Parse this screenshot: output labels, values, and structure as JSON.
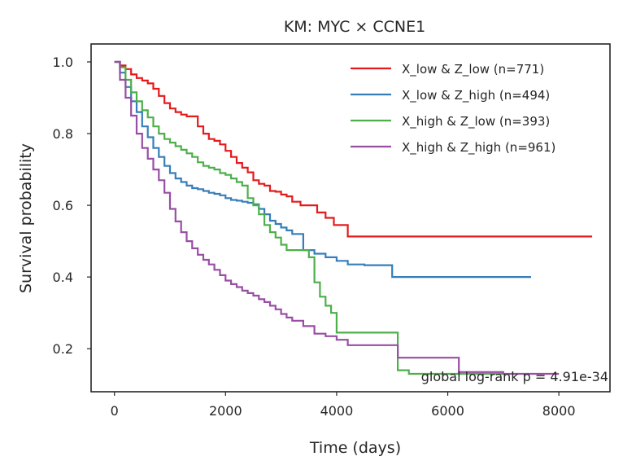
{
  "chart_data": {
    "type": "line",
    "title": "KM: MYC × CCNE1",
    "xlabel": "Time (days)",
    "ylabel": "Survival probability",
    "xlim": [
      -420,
      8920
    ],
    "ylim": [
      0.08,
      1.05
    ],
    "xticks": [
      0,
      2000,
      4000,
      6000,
      8000
    ],
    "xtick_labels": [
      "0",
      "2000",
      "4000",
      "6000",
      "8000"
    ],
    "yticks": [
      0.2,
      0.4,
      0.6,
      0.8,
      1.0
    ],
    "ytick_labels": [
      "0.2",
      "0.4",
      "0.6",
      "0.8",
      "1.0"
    ],
    "grid": false,
    "legend_position": "top-right",
    "annotation": "global log-rank p = 4.91e-34",
    "series": [
      {
        "name": "X_low & Z_low (n=771)",
        "color": "#e41a1c",
        "x": [
          0,
          100,
          200,
          300,
          400,
          500,
          600,
          700,
          800,
          900,
          1000,
          1100,
          1200,
          1300,
          1400,
          1500,
          1600,
          1700,
          1800,
          1900,
          2000,
          2100,
          2200,
          2300,
          2400,
          2500,
          2600,
          2700,
          2800,
          2900,
          3000,
          3100,
          3200,
          3350,
          3500,
          3650,
          3800,
          3950,
          4200,
          5000,
          6000,
          7000,
          8000,
          8600
        ],
        "y": [
          1.0,
          0.99,
          0.98,
          0.965,
          0.955,
          0.948,
          0.94,
          0.925,
          0.905,
          0.885,
          0.87,
          0.86,
          0.853,
          0.848,
          0.848,
          0.82,
          0.8,
          0.785,
          0.78,
          0.77,
          0.752,
          0.735,
          0.718,
          0.705,
          0.692,
          0.67,
          0.66,
          0.655,
          0.64,
          0.638,
          0.63,
          0.625,
          0.61,
          0.6,
          0.6,
          0.58,
          0.565,
          0.545,
          0.513,
          0.513,
          0.513,
          0.513,
          0.513,
          0.513
        ]
      },
      {
        "name": "X_low & Z_high (n=494)",
        "color": "#377eb8",
        "x": [
          0,
          100,
          200,
          300,
          400,
          500,
          600,
          700,
          800,
          900,
          1000,
          1100,
          1200,
          1300,
          1400,
          1500,
          1600,
          1700,
          1800,
          1900,
          2000,
          2100,
          2200,
          2300,
          2400,
          2500,
          2600,
          2700,
          2800,
          2900,
          3000,
          3100,
          3200,
          3400,
          3600,
          3800,
          4000,
          4200,
          4500,
          5000,
          5500,
          6000,
          7000,
          7500
        ],
        "y": [
          1.0,
          0.97,
          0.93,
          0.89,
          0.86,
          0.82,
          0.79,
          0.76,
          0.735,
          0.71,
          0.69,
          0.675,
          0.665,
          0.655,
          0.648,
          0.645,
          0.64,
          0.635,
          0.632,
          0.628,
          0.62,
          0.615,
          0.613,
          0.61,
          0.607,
          0.603,
          0.59,
          0.575,
          0.557,
          0.548,
          0.538,
          0.53,
          0.52,
          0.475,
          0.465,
          0.455,
          0.445,
          0.435,
          0.433,
          0.4,
          0.4,
          0.4,
          0.4,
          0.4
        ]
      },
      {
        "name": "X_high & Z_low (n=393)",
        "color": "#4daf4a",
        "x": [
          0,
          100,
          200,
          300,
          400,
          500,
          600,
          700,
          800,
          900,
          1000,
          1100,
          1200,
          1300,
          1400,
          1500,
          1600,
          1700,
          1800,
          1900,
          2000,
          2100,
          2200,
          2300,
          2400,
          2500,
          2600,
          2700,
          2800,
          2900,
          3000,
          3100,
          3300,
          3500,
          3600,
          3700,
          3800,
          3900,
          4000,
          4500,
          5100,
          5300,
          6000,
          7000
        ],
        "y": [
          1.0,
          0.985,
          0.95,
          0.915,
          0.89,
          0.865,
          0.845,
          0.82,
          0.8,
          0.785,
          0.775,
          0.765,
          0.755,
          0.745,
          0.735,
          0.72,
          0.71,
          0.705,
          0.7,
          0.69,
          0.685,
          0.675,
          0.665,
          0.655,
          0.62,
          0.6,
          0.575,
          0.545,
          0.525,
          0.51,
          0.49,
          0.475,
          0.475,
          0.455,
          0.385,
          0.345,
          0.32,
          0.3,
          0.245,
          0.245,
          0.14,
          0.13,
          0.13,
          0.13
        ]
      },
      {
        "name": "X_high & Z_high (n=961)",
        "color": "#984ea3",
        "x": [
          0,
          100,
          200,
          300,
          400,
          500,
          600,
          700,
          800,
          900,
          1000,
          1100,
          1200,
          1300,
          1400,
          1500,
          1600,
          1700,
          1800,
          1900,
          2000,
          2100,
          2200,
          2300,
          2400,
          2500,
          2600,
          2700,
          2800,
          2900,
          3000,
          3100,
          3200,
          3400,
          3600,
          3800,
          4000,
          4200,
          5000,
          5100,
          6000,
          6200,
          7000,
          8000
        ],
        "y": [
          1.0,
          0.95,
          0.9,
          0.85,
          0.8,
          0.76,
          0.73,
          0.7,
          0.67,
          0.635,
          0.59,
          0.555,
          0.525,
          0.5,
          0.48,
          0.462,
          0.448,
          0.435,
          0.42,
          0.405,
          0.39,
          0.38,
          0.372,
          0.362,
          0.355,
          0.348,
          0.338,
          0.33,
          0.32,
          0.31,
          0.297,
          0.287,
          0.278,
          0.263,
          0.242,
          0.235,
          0.225,
          0.21,
          0.21,
          0.175,
          0.175,
          0.135,
          0.13,
          0.13
        ]
      }
    ]
  }
}
